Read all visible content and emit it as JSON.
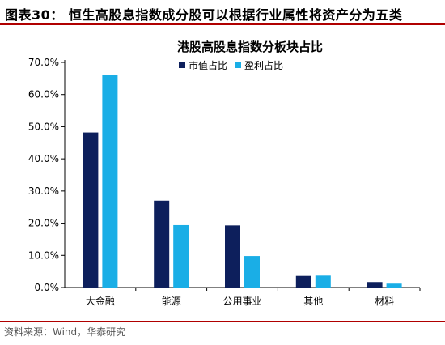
{
  "figure": {
    "title": "图表30：  恒生高股息指数成分股可以根据行业属性将资产分为五类",
    "source": "资料来源：Wind，华泰研究",
    "rule_color": "#b00000"
  },
  "chart_data": {
    "type": "bar",
    "title": "港股高股息指数分板块占比",
    "categories": [
      "大金融",
      "能源",
      "公用事业",
      "其他",
      "材料"
    ],
    "series": [
      {
        "name": "市值占比",
        "color": "#0d1f5c",
        "values": [
          48.2,
          27.0,
          19.3,
          3.6,
          1.7
        ]
      },
      {
        "name": "盈利占比",
        "color": "#1aaee6",
        "values": [
          66.0,
          19.4,
          9.8,
          3.7,
          1.2
        ]
      }
    ],
    "ylim": [
      0,
      70
    ],
    "ytick_values": [
      0,
      10,
      20,
      30,
      40,
      50,
      60,
      70
    ],
    "ytick_labels": [
      "0.0%",
      "10.0%",
      "20.0%",
      "30.0%",
      "40.0%",
      "50.0%",
      "60.0%",
      "70.0%"
    ],
    "xlabel": "",
    "ylabel": "",
    "grid": false,
    "legend_position": "top-center"
  }
}
